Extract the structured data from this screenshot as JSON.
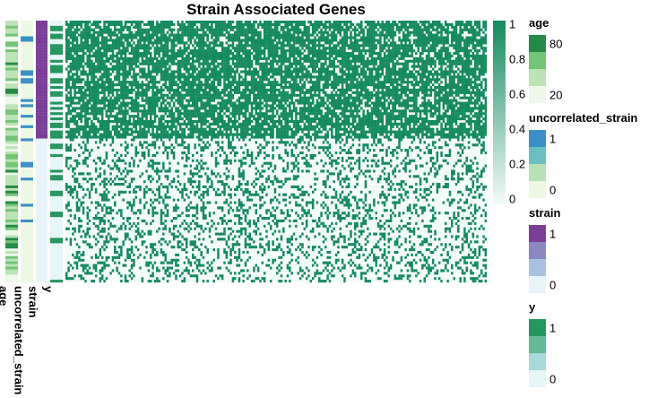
{
  "chart_data": {
    "type": "heatmap",
    "title": "Strain Associated Genes",
    "rows": 100,
    "columns": 200,
    "strain_positive_rows": 45,
    "density_strain_positive": 0.78,
    "density_strain_negative": 0.28,
    "matrix_colors": {
      "high": "#158a5e",
      "low": "#f4fbfb"
    },
    "colorbar": {
      "ticks": [
        "1",
        "0.8",
        "0.6",
        "0.4",
        "0.2",
        "0"
      ]
    },
    "annotation_columns": [
      {
        "label": "age",
        "range": [
          20,
          80
        ],
        "ticks": [
          "80",
          "20"
        ],
        "colors": [
          "#238b45",
          "#74c476",
          "#bae4b3",
          "#edf8e9"
        ]
      },
      {
        "label": "uncorrelated_strain",
        "range": [
          0,
          1
        ],
        "ticks": [
          "1",
          "0"
        ],
        "colors": [
          "#3b8fc6",
          "#6bbfbf",
          "#b6e1b7",
          "#ecf8e4"
        ]
      },
      {
        "label": "strain",
        "range": [
          0,
          1
        ],
        "ticks": [
          "1",
          "0"
        ],
        "colors": [
          "#7b3f98",
          "#8b87c0",
          "#a8c1de",
          "#e7f4f9"
        ]
      },
      {
        "label": "y",
        "range": [
          0,
          1
        ],
        "ticks": [
          "1",
          "0"
        ],
        "colors": [
          "#24965e",
          "#62bb95",
          "#a6dad8",
          "#e6f5f8"
        ]
      }
    ]
  }
}
